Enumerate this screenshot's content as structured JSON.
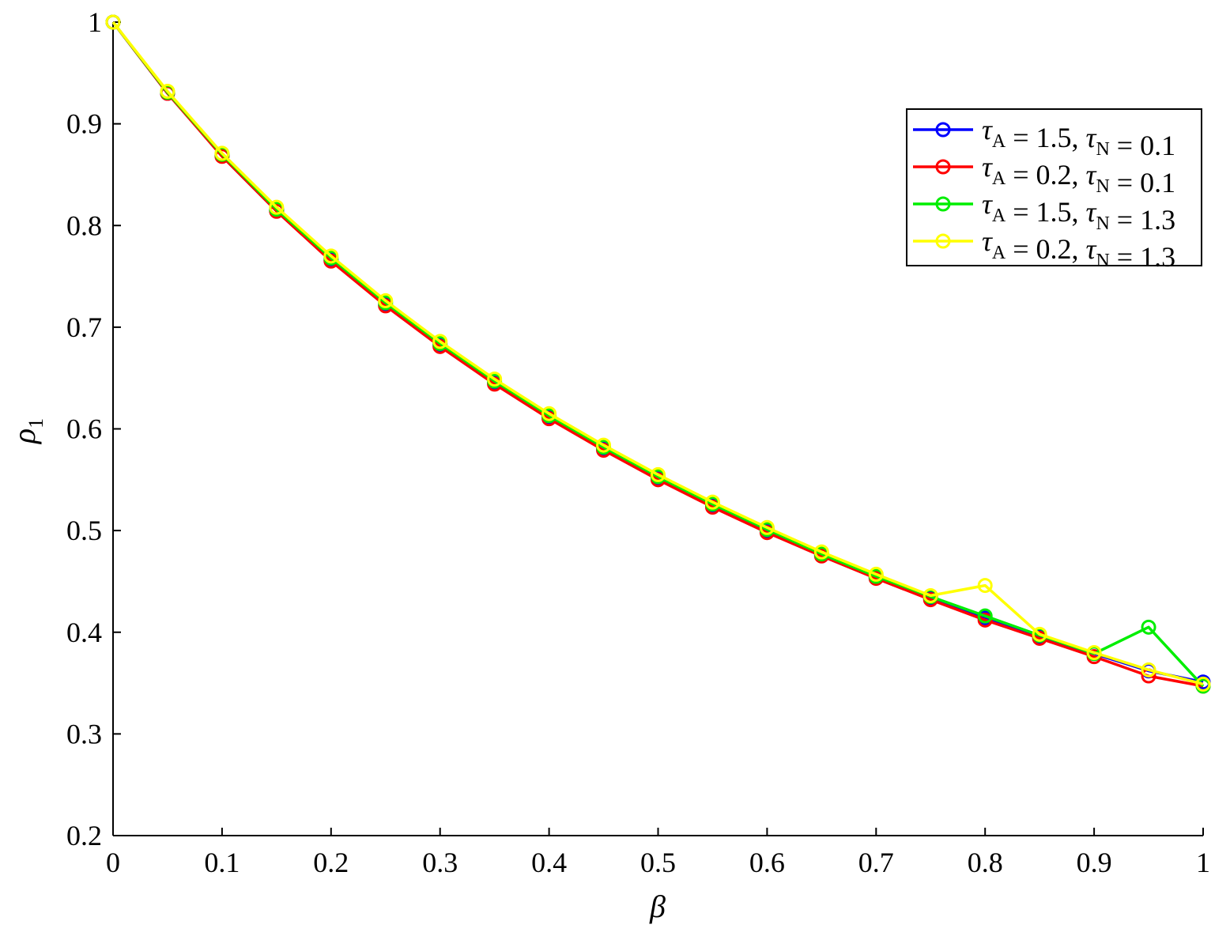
{
  "chart_data": {
    "type": "line",
    "title": "",
    "xlabel": "β",
    "ylabel": "ρ",
    "ylabel_sub": "1",
    "xlim": [
      0,
      1
    ],
    "ylim": [
      0.2,
      1
    ],
    "x_ticks": [
      0,
      0.1,
      0.2,
      0.3,
      0.4,
      0.5,
      0.6,
      0.7,
      0.8,
      0.9,
      1
    ],
    "x_tick_labels": [
      "0",
      "0.1",
      "0.2",
      "0.3",
      "0.4",
      "0.5",
      "0.6",
      "0.7",
      "0.8",
      "0.9",
      "1"
    ],
    "y_ticks": [
      0.2,
      0.3,
      0.4,
      0.5,
      0.6,
      0.7,
      0.8,
      0.9,
      1
    ],
    "y_tick_labels": [
      "0.2",
      "0.3",
      "0.4",
      "0.5",
      "0.6",
      "0.7",
      "0.8",
      "0.9",
      "1"
    ],
    "grid": false,
    "legend_position": "top-right",
    "x": [
      0,
      0.05,
      0.1,
      0.15,
      0.2,
      0.25,
      0.3,
      0.35,
      0.4,
      0.45,
      0.5,
      0.55,
      0.6,
      0.65,
      0.7,
      0.75,
      0.8,
      0.85,
      0.9,
      0.95,
      1
    ],
    "series": [
      {
        "legend": [
          {
            "t": "τ",
            "s": "A"
          },
          {
            "t": " = 1.5, "
          },
          {
            "t": "τ",
            "s": "N"
          },
          {
            "t": " = 0.1"
          }
        ],
        "color": "#0000ff",
        "values": [
          1.0,
          0.93,
          0.869,
          0.815,
          0.766,
          0.722,
          0.682,
          0.645,
          0.611,
          0.58,
          0.551,
          0.524,
          0.499,
          0.476,
          0.454,
          0.434,
          0.414,
          0.396,
          0.379,
          0.362,
          0.351
        ]
      },
      {
        "legend": [
          {
            "t": "τ",
            "s": "A"
          },
          {
            "t": " = 0.2, "
          },
          {
            "t": "τ",
            "s": "N"
          },
          {
            "t": " = 0.1"
          }
        ],
        "color": "#ff0000",
        "values": [
          1.0,
          0.93,
          0.868,
          0.814,
          0.765,
          0.721,
          0.681,
          0.644,
          0.61,
          0.579,
          0.55,
          0.523,
          0.498,
          0.475,
          0.453,
          0.432,
          0.412,
          0.394,
          0.376,
          0.357,
          0.347
        ]
      },
      {
        "legend": [
          {
            "t": "τ",
            "s": "A"
          },
          {
            "t": " = 1.5, "
          },
          {
            "t": "τ",
            "s": "N"
          },
          {
            "t": " = 1.3"
          }
        ],
        "color": "#00ee00",
        "values": [
          1.0,
          0.931,
          0.87,
          0.816,
          0.768,
          0.724,
          0.684,
          0.647,
          0.613,
          0.582,
          0.553,
          0.526,
          0.501,
          0.477,
          0.455,
          0.435,
          0.416,
          0.397,
          0.379,
          0.405,
          0.347
        ]
      },
      {
        "legend": [
          {
            "t": "τ",
            "s": "A"
          },
          {
            "t": " = 0.2, "
          },
          {
            "t": "τ",
            "s": "N"
          },
          {
            "t": " = 1.3"
          }
        ],
        "color": "#ffff00",
        "values": [
          1.0,
          0.932,
          0.871,
          0.818,
          0.77,
          0.726,
          0.686,
          0.649,
          0.615,
          0.584,
          0.555,
          0.528,
          0.503,
          0.479,
          0.457,
          0.436,
          0.446,
          0.398,
          0.38,
          0.363,
          0.349
        ]
      }
    ]
  }
}
